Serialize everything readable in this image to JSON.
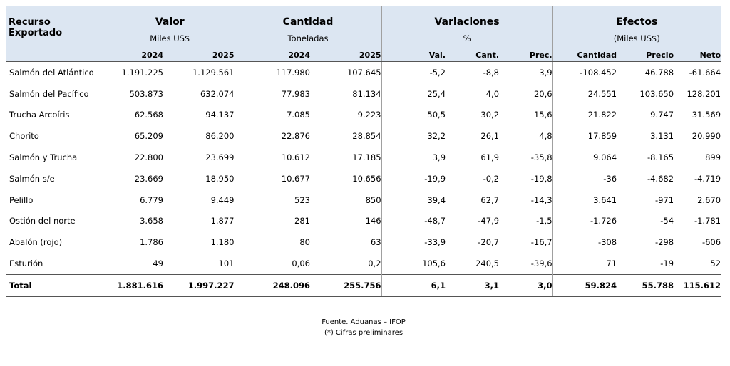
{
  "header": {
    "recurso": "Recurso Exportado",
    "groups": [
      {
        "title": "Valor",
        "sub": "Miles US$"
      },
      {
        "title": "Cantidad",
        "sub": "Toneladas"
      },
      {
        "title": "Variaciones",
        "sub": "%"
      },
      {
        "title": "Efectos",
        "sub": "(Miles US$)"
      }
    ],
    "columns": [
      "2024",
      "2025",
      "2024",
      "2025",
      "Val.",
      "Cant.",
      "Prec.",
      "Cantidad",
      "Precio",
      "Neto"
    ]
  },
  "rows": [
    {
      "name": "Salmón del Atlántico",
      "cells": [
        "1.191.225",
        "1.129.561",
        "117.980",
        "107.645",
        "-5,2",
        "-8,8",
        "3,9",
        "-108.452",
        "46.788",
        "-61.664"
      ]
    },
    {
      "name": "Salmón del Pacífico",
      "cells": [
        "503.873",
        "632.074",
        "77.983",
        "81.134",
        "25,4",
        "4,0",
        "20,6",
        "24.551",
        "103.650",
        "128.201"
      ]
    },
    {
      "name": "Trucha Arcoíris",
      "cells": [
        "62.568",
        "94.137",
        "7.085",
        "9.223",
        "50,5",
        "30,2",
        "15,6",
        "21.822",
        "9.747",
        "31.569"
      ]
    },
    {
      "name": "Chorito",
      "cells": [
        "65.209",
        "86.200",
        "22.876",
        "28.854",
        "32,2",
        "26,1",
        "4,8",
        "17.859",
        "3.131",
        "20.990"
      ]
    },
    {
      "name": "Salmón y Trucha",
      "cells": [
        "22.800",
        "23.699",
        "10.612",
        "17.185",
        "3,9",
        "61,9",
        "-35,8",
        "9.064",
        "-8.165",
        "899"
      ]
    },
    {
      "name": "Salmón s/e",
      "cells": [
        "23.669",
        "18.950",
        "10.677",
        "10.656",
        "-19,9",
        "-0,2",
        "-19,8",
        "-36",
        "-4.682",
        "-4.719"
      ]
    },
    {
      "name": "Pelillo",
      "cells": [
        "6.779",
        "9.449",
        "523",
        "850",
        "39,4",
        "62,7",
        "-14,3",
        "3.641",
        "-971",
        "2.670"
      ]
    },
    {
      "name": "Ostión del norte",
      "cells": [
        "3.658",
        "1.877",
        "281",
        "146",
        "-48,7",
        "-47,9",
        "-1,5",
        "-1.726",
        "-54",
        "-1.781"
      ]
    },
    {
      "name": "Abalón (rojo)",
      "cells": [
        "1.786",
        "1.180",
        "80",
        "63",
        "-33,9",
        "-20,7",
        "-16,7",
        "-308",
        "-298",
        "-606"
      ]
    },
    {
      "name": "Esturión",
      "cells": [
        "49",
        "101",
        "0,06",
        "0,2",
        "105,6",
        "240,5",
        "-39,6",
        "71",
        "-19",
        "52"
      ]
    }
  ],
  "total": {
    "name": "Total",
    "cells": [
      "1.881.616",
      "1.997.227",
      "248.096",
      "255.756",
      "6,1",
      "3,1",
      "3,0",
      "59.824",
      "55.788",
      "115.612"
    ]
  },
  "footer": {
    "source": "Fuente. Aduanas – IFOP",
    "note": "(*) Cifras preliminares"
  }
}
